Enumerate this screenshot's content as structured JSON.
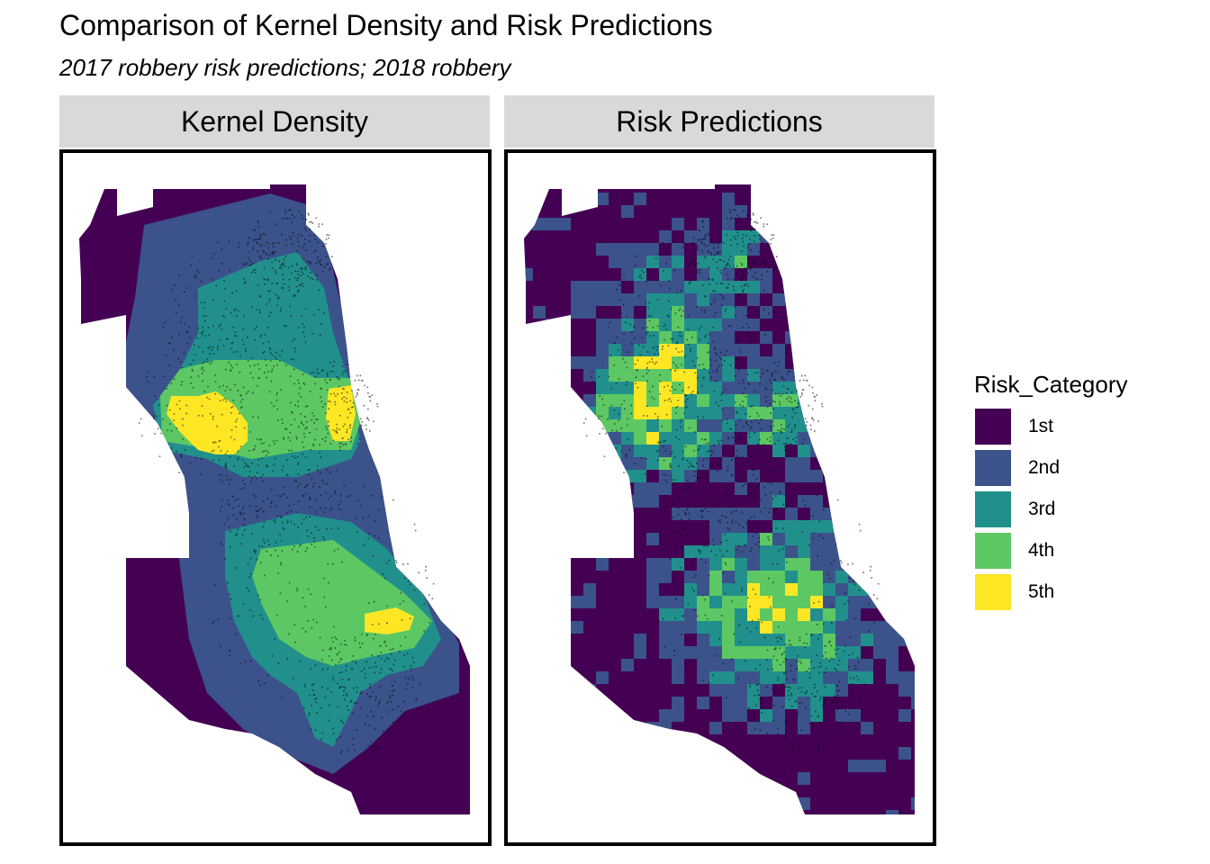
{
  "title": "Comparison of Kernel Density and Risk Predictions",
  "subtitle": "2017 robbery risk predictions; 2018 robbery",
  "panels": [
    {
      "label": "Kernel Density"
    },
    {
      "label": "Risk Predictions"
    }
  ],
  "legend": {
    "title": "Risk_Category",
    "items": [
      {
        "label": "1st",
        "color": "#440154"
      },
      {
        "label": "2nd",
        "color": "#3B528B"
      },
      {
        "label": "3rd",
        "color": "#21908C"
      },
      {
        "label": "4th",
        "color": "#5DC863"
      },
      {
        "label": "5th",
        "color": "#FDE725"
      }
    ]
  }
}
